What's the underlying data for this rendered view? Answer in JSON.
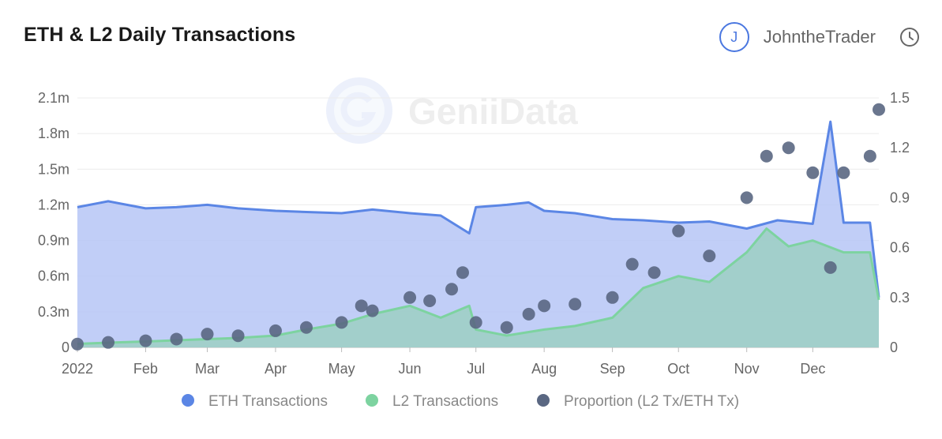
{
  "header": {
    "title": "ETH & L2 Daily Transactions",
    "user_initial": "J",
    "username": "JohntheTrader",
    "watermark": "GeniiData"
  },
  "colors": {
    "eth": "#5b86e5",
    "eth_fill": "#b6c6f6",
    "l2": "#7dd3a0",
    "l2_fill": "#9ccfc3",
    "proportion": "#5a6782"
  },
  "chart_data": {
    "type": "line",
    "title": "ETH & L2 Daily Transactions",
    "x_ticks": [
      "2022",
      "Feb",
      "Mar",
      "Apr",
      "May",
      "Jun",
      "Jul",
      "Aug",
      "Sep",
      "Oct",
      "Nov",
      "Dec"
    ],
    "y_left_ticks": [
      "0",
      "0.3m",
      "0.6m",
      "0.9m",
      "1.2m",
      "1.5m",
      "1.8m",
      "2.1m"
    ],
    "y_right_ticks": [
      "0",
      "0.3",
      "0.6",
      "0.9",
      "1.2",
      "1.5"
    ],
    "ylim_left": [
      0,
      2100000
    ],
    "ylim_right": [
      0,
      1.5
    ],
    "grid": true,
    "legend_position": "bottom",
    "series": [
      {
        "name": "ETH Transactions",
        "axis": "left",
        "style": "area",
        "x": [
          "2022-01-01",
          "2022-01-15",
          "2022-02-01",
          "2022-02-15",
          "2022-03-01",
          "2022-03-15",
          "2022-04-01",
          "2022-04-15",
          "2022-05-01",
          "2022-05-15",
          "2022-06-01",
          "2022-06-15",
          "2022-06-28",
          "2022-07-01",
          "2022-07-15",
          "2022-07-25",
          "2022-08-01",
          "2022-08-15",
          "2022-09-01",
          "2022-09-15",
          "2022-10-01",
          "2022-10-15",
          "2022-11-01",
          "2022-11-15",
          "2022-12-01",
          "2022-12-09",
          "2022-12-15",
          "2022-12-27",
          "2022-12-31"
        ],
        "values": [
          1180000,
          1230000,
          1170000,
          1180000,
          1200000,
          1170000,
          1150000,
          1140000,
          1130000,
          1160000,
          1130000,
          1110000,
          960000,
          1180000,
          1200000,
          1220000,
          1150000,
          1130000,
          1080000,
          1070000,
          1050000,
          1060000,
          1000000,
          1070000,
          1040000,
          1900000,
          1050000,
          1050000,
          420000
        ]
      },
      {
        "name": "L2 Transactions",
        "axis": "left",
        "style": "area",
        "x": [
          "2022-01-01",
          "2022-01-15",
          "2022-02-01",
          "2022-02-15",
          "2022-03-01",
          "2022-03-15",
          "2022-04-01",
          "2022-04-15",
          "2022-05-01",
          "2022-05-15",
          "2022-06-01",
          "2022-06-15",
          "2022-06-28",
          "2022-07-01",
          "2022-07-15",
          "2022-08-01",
          "2022-08-15",
          "2022-09-01",
          "2022-09-15",
          "2022-10-01",
          "2022-10-15",
          "2022-11-01",
          "2022-11-10",
          "2022-11-20",
          "2022-12-01",
          "2022-12-15",
          "2022-12-27",
          "2022-12-31"
        ],
        "values": [
          30000,
          40000,
          50000,
          60000,
          70000,
          80000,
          100000,
          150000,
          200000,
          280000,
          350000,
          250000,
          350000,
          150000,
          100000,
          150000,
          180000,
          250000,
          500000,
          600000,
          550000,
          800000,
          1000000,
          850000,
          900000,
          800000,
          800000,
          400000
        ]
      },
      {
        "name": "Proportion (L2 Tx/ETH Tx)",
        "axis": "right",
        "style": "scatter",
        "x": [
          "2022-01-01",
          "2022-01-15",
          "2022-02-01",
          "2022-02-15",
          "2022-03-01",
          "2022-03-15",
          "2022-04-01",
          "2022-04-15",
          "2022-05-01",
          "2022-05-10",
          "2022-05-15",
          "2022-06-01",
          "2022-06-10",
          "2022-06-20",
          "2022-06-25",
          "2022-07-01",
          "2022-07-15",
          "2022-07-25",
          "2022-08-01",
          "2022-08-15",
          "2022-09-01",
          "2022-09-10",
          "2022-09-20",
          "2022-10-01",
          "2022-10-15",
          "2022-11-01",
          "2022-11-10",
          "2022-11-20",
          "2022-12-01",
          "2022-12-09",
          "2022-12-15",
          "2022-12-27",
          "2022-12-31"
        ],
        "values": [
          0.02,
          0.03,
          0.04,
          0.05,
          0.08,
          0.07,
          0.1,
          0.12,
          0.15,
          0.25,
          0.22,
          0.3,
          0.28,
          0.35,
          0.45,
          0.15,
          0.12,
          0.2,
          0.25,
          0.26,
          0.3,
          0.5,
          0.45,
          0.7,
          0.55,
          0.9,
          1.15,
          1.2,
          1.05,
          0.48,
          1.05,
          1.15,
          1.43
        ]
      }
    ]
  }
}
